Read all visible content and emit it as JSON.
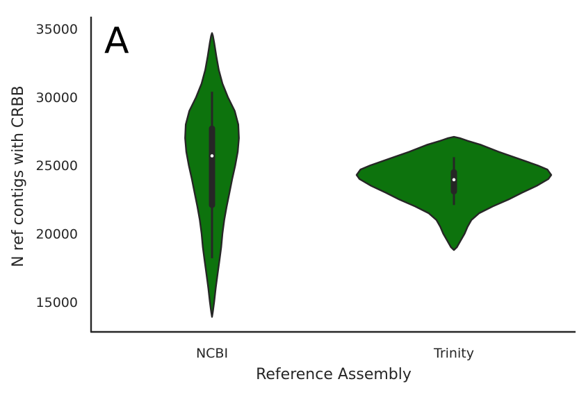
{
  "chart_data": {
    "type": "violin",
    "panel_label": "A",
    "xlabel": "Reference Assembly",
    "ylabel": "N ref contigs with CRBB",
    "categories": [
      "NCBI",
      "Trinity"
    ],
    "ylim": [
      12800,
      35900
    ],
    "yticks": [
      15000,
      20000,
      25000,
      30000,
      35000
    ],
    "grid": false,
    "fill_color": "#0d730d",
    "edge_color": "#262626",
    "violins": [
      {
        "category": "NCBI",
        "min": 13900,
        "max": 34700,
        "whisker_low": 18200,
        "whisker_high": 30400,
        "q1": 22100,
        "q3": 27700,
        "median": 25700,
        "profile": [
          [
            13900,
            0.0
          ],
          [
            14300,
            0.03
          ],
          [
            15000,
            0.07
          ],
          [
            16000,
            0.12
          ],
          [
            17000,
            0.18
          ],
          [
            18000,
            0.24
          ],
          [
            19000,
            0.3
          ],
          [
            20000,
            0.34
          ],
          [
            21000,
            0.4
          ],
          [
            22000,
            0.48
          ],
          [
            23000,
            0.57
          ],
          [
            24000,
            0.66
          ],
          [
            25000,
            0.76
          ],
          [
            26000,
            0.84
          ],
          [
            27000,
            0.88
          ],
          [
            28000,
            0.86
          ],
          [
            29000,
            0.74
          ],
          [
            30000,
            0.52
          ],
          [
            31000,
            0.34
          ],
          [
            32000,
            0.22
          ],
          [
            33000,
            0.14
          ],
          [
            34000,
            0.07
          ],
          [
            34500,
            0.03
          ],
          [
            34700,
            0.0
          ]
        ]
      },
      {
        "category": "Trinity",
        "min": 18800,
        "max": 27100,
        "whisker_low": 22100,
        "whisker_high": 25600,
        "q1": 23100,
        "q3": 24500,
        "median": 23950,
        "profile": [
          [
            18800,
            0.0
          ],
          [
            19000,
            0.03
          ],
          [
            19500,
            0.07
          ],
          [
            20000,
            0.11
          ],
          [
            20500,
            0.14
          ],
          [
            21000,
            0.18
          ],
          [
            21500,
            0.26
          ],
          [
            22000,
            0.4
          ],
          [
            22500,
            0.56
          ],
          [
            23000,
            0.7
          ],
          [
            23500,
            0.85
          ],
          [
            24000,
            0.97
          ],
          [
            24300,
            1.0
          ],
          [
            24700,
            0.96
          ],
          [
            25000,
            0.86
          ],
          [
            25500,
            0.66
          ],
          [
            26000,
            0.46
          ],
          [
            26500,
            0.28
          ],
          [
            26800,
            0.14
          ],
          [
            27000,
            0.06
          ],
          [
            27100,
            0.0
          ]
        ]
      }
    ]
  }
}
